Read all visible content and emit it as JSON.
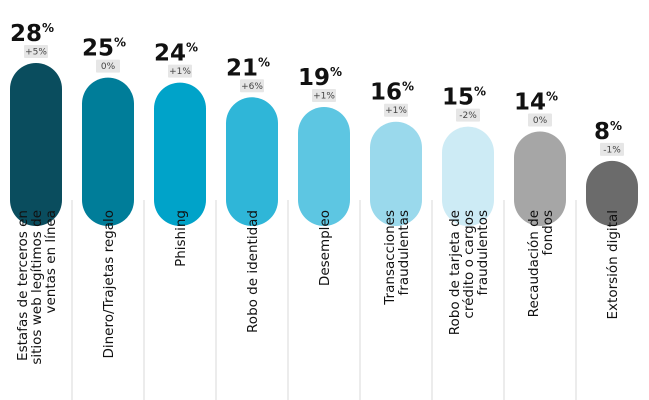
{
  "chart_data": {
    "type": "bar",
    "categories": [
      [
        "Estafas de terceros en",
        "sitios web legítimos de",
        "ventas en línea"
      ],
      [
        "Dinero/Trajetas regalo"
      ],
      [
        "Phishing"
      ],
      [
        "Robo de identidad"
      ],
      [
        "Desempleo"
      ],
      [
        "Transacciones",
        "fraudulentas"
      ],
      [
        "Robo de tarjeta de",
        "crédito o cargos",
        "fraudulentos"
      ],
      [
        "Recaudación de",
        "fondos"
      ],
      [
        "Extorsión digital"
      ]
    ],
    "values": [
      28,
      25,
      24,
      21,
      19,
      16,
      15,
      14,
      8
    ],
    "changes": [
      "+5%",
      "0%",
      "+1%",
      "+6%",
      "+1%",
      "+1%",
      "-2%",
      "0%",
      "-1%"
    ],
    "colors": [
      "#0a4d5e",
      "#007d99",
      "#00a3c9",
      "#2fb6d8",
      "#5dc6e2",
      "#9ad9ec",
      "#cdebf5",
      "#a6a6a6",
      "#6b6b6b"
    ],
    "value_suffix": "%",
    "ylim": [
      0,
      28
    ]
  }
}
